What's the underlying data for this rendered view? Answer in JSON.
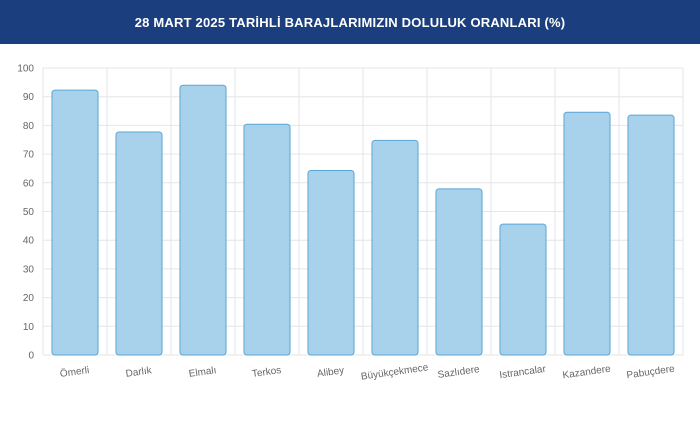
{
  "header": {
    "title": "28 MART 2025 TARİHLİ BARAJLARIMIZIN DOLULUK ORANLARI (%)",
    "background": "#1b3f7e"
  },
  "chart_data": {
    "type": "bar",
    "title": "28 MART 2025 TARİHLİ BARAJLARIMIZIN DOLULUK ORANLARI (%)",
    "xlabel": "",
    "ylabel": "",
    "ylim": [
      0,
      100
    ],
    "yticks": [
      0,
      10,
      20,
      30,
      40,
      50,
      60,
      70,
      80,
      90,
      100
    ],
    "grid": true,
    "categories": [
      "Ömerli",
      "Darlık",
      "Elmalı",
      "Terkos",
      "Alibey",
      "Büyükçekmece",
      "Sazlıdere",
      "Istrancalar",
      "Kazandere",
      "Pabuçdere"
    ],
    "values": [
      92.3,
      77.7,
      94.0,
      80.4,
      64.3,
      74.8,
      57.9,
      45.6,
      84.6,
      83.6
    ],
    "bar_fill": "#a8d1ec",
    "bar_stroke": "#5aa6d6"
  }
}
